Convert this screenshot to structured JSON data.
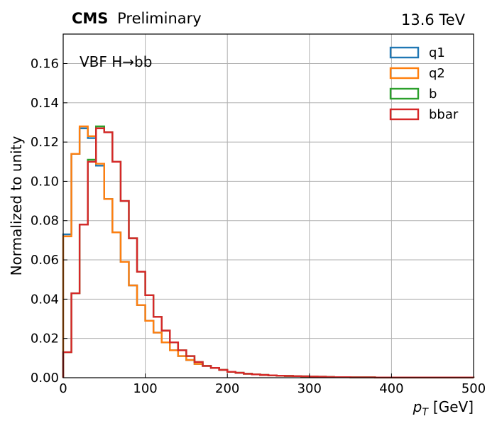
{
  "header": {
    "experiment": "CMS",
    "status": "Preliminary",
    "energy": "13.6 TeV"
  },
  "chart_data": {
    "type": "step-histogram",
    "annotation": "VBF H→bb",
    "xlabel_symbol": "p",
    "xlabel_subscript": "T",
    "xlabel_unit": "[GeV]",
    "ylabel": "Normalized to unity",
    "xlim": [
      0,
      500
    ],
    "ylim": [
      0,
      0.175
    ],
    "xticks": [
      0,
      100,
      200,
      300,
      400,
      500
    ],
    "yticks": [
      0.0,
      0.02,
      0.04,
      0.06,
      0.08,
      0.1,
      0.12,
      0.14,
      0.16
    ],
    "ytick_labels": [
      "0.00",
      "0.02",
      "0.04",
      "0.06",
      "0.08",
      "0.10",
      "0.12",
      "0.14",
      "0.16"
    ],
    "grid": true,
    "legend_position": "top-right",
    "bin_edges": [
      0,
      10,
      20,
      30,
      40,
      50,
      60,
      70,
      80,
      90,
      100,
      110,
      120,
      130,
      140,
      150,
      160,
      170,
      180,
      190,
      200,
      210,
      220,
      230,
      240,
      250,
      260,
      270,
      280,
      290,
      300,
      310,
      320,
      330,
      340,
      350,
      360,
      370,
      380,
      390,
      400,
      410,
      420,
      430,
      440,
      450,
      460,
      470,
      480,
      490,
      500
    ],
    "series": [
      {
        "name": "q1",
        "color": "#1f77b4",
        "values": [
          0.073,
          0.114,
          0.127,
          0.122,
          0.108,
          0.091,
          0.074,
          0.059,
          0.047,
          0.037,
          0.029,
          0.023,
          0.018,
          0.014,
          0.011,
          0.009,
          0.007,
          0.006,
          0.005,
          0.004,
          0.003,
          0.0025,
          0.002,
          0.0017,
          0.0014,
          0.0012,
          0.001,
          0.0009,
          0.0008,
          0.0007,
          0.0006,
          0.0005,
          0.0004,
          0.0003,
          0.0003,
          0.0002,
          0.0002,
          0.0002,
          0.0001,
          0.0001,
          0.0001,
          0.0001,
          0.0001,
          0.0001,
          0.0001,
          0.0001,
          0.0001,
          0.0001,
          0.0001,
          0.0001
        ]
      },
      {
        "name": "q2",
        "color": "#ff7f0e",
        "values": [
          0.072,
          0.114,
          0.128,
          0.123,
          0.109,
          0.091,
          0.074,
          0.059,
          0.047,
          0.037,
          0.029,
          0.023,
          0.018,
          0.014,
          0.011,
          0.009,
          0.007,
          0.006,
          0.005,
          0.004,
          0.003,
          0.0025,
          0.002,
          0.0017,
          0.0014,
          0.0012,
          0.001,
          0.0009,
          0.0008,
          0.0007,
          0.0006,
          0.0005,
          0.0004,
          0.0003,
          0.0003,
          0.0002,
          0.0002,
          0.0002,
          0.0001,
          0.0001,
          0.0001,
          0.0001,
          0.0001,
          0.0001,
          0.0001,
          0.0001,
          0.0001,
          0.0001,
          0.0001,
          0.0001
        ]
      },
      {
        "name": "b",
        "color": "#2ca02c",
        "values": [
          0.013,
          0.043,
          0.078,
          0.111,
          0.128,
          0.125,
          0.11,
          0.09,
          0.071,
          0.054,
          0.042,
          0.031,
          0.024,
          0.018,
          0.014,
          0.011,
          0.008,
          0.006,
          0.005,
          0.004,
          0.003,
          0.0025,
          0.002,
          0.0017,
          0.0014,
          0.0012,
          0.001,
          0.0009,
          0.0008,
          0.0007,
          0.0006,
          0.0005,
          0.0004,
          0.0003,
          0.0003,
          0.0002,
          0.0002,
          0.0002,
          0.0001,
          0.0001,
          0.0001,
          0.0001,
          0.0001,
          0.0001,
          0.0001,
          0.0001,
          0.0001,
          0.0001,
          0.0001,
          0.0001
        ]
      },
      {
        "name": "bbar",
        "color": "#d62728",
        "values": [
          0.013,
          0.043,
          0.078,
          0.11,
          0.127,
          0.125,
          0.11,
          0.09,
          0.071,
          0.054,
          0.042,
          0.031,
          0.024,
          0.018,
          0.014,
          0.011,
          0.008,
          0.006,
          0.005,
          0.004,
          0.003,
          0.0025,
          0.002,
          0.0017,
          0.0014,
          0.0012,
          0.001,
          0.0009,
          0.0008,
          0.0007,
          0.0006,
          0.0005,
          0.0004,
          0.0003,
          0.0003,
          0.0002,
          0.0002,
          0.0002,
          0.0001,
          0.0001,
          0.0001,
          0.0001,
          0.0001,
          0.0001,
          0.0001,
          0.0001,
          0.0001,
          0.0001,
          0.0001,
          0.0001
        ]
      }
    ]
  }
}
